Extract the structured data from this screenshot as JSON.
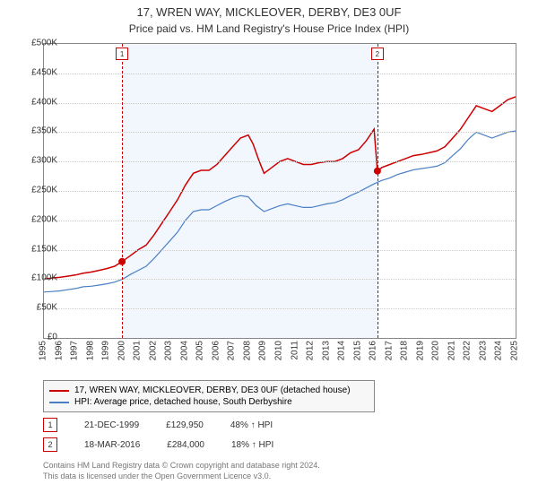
{
  "title": "17, WREN WAY, MICKLEOVER, DERBY, DE3 0UF",
  "subtitle": "Price paid vs. HM Land Registry's House Price Index (HPI)",
  "chart": {
    "type": "line",
    "background_color": "#ffffff",
    "plot_border_color": "#888888",
    "grid_color": "#cccccc",
    "shade_color": "#eaf2fb",
    "x": {
      "min": 1995,
      "max": 2025,
      "ticks": [
        1995,
        1996,
        1997,
        1998,
        1999,
        2000,
        2001,
        2002,
        2003,
        2004,
        2005,
        2006,
        2007,
        2008,
        2009,
        2010,
        2011,
        2012,
        2013,
        2014,
        2015,
        2016,
        2017,
        2018,
        2019,
        2020,
        2021,
        2022,
        2023,
        2024,
        2025
      ],
      "label_fontsize": 10,
      "label_rotation": -90
    },
    "y": {
      "min": 0,
      "max": 500000,
      "ticks": [
        0,
        50000,
        100000,
        150000,
        200000,
        250000,
        300000,
        350000,
        400000,
        450000,
        500000
      ],
      "tick_labels": [
        "£0",
        "£50K",
        "£100K",
        "£150K",
        "£200K",
        "£250K",
        "£300K",
        "£350K",
        "£400K",
        "£450K",
        "£500K"
      ],
      "label_fontsize": 10
    },
    "series": [
      {
        "name": "17, WREN WAY, MICKLEOVER, DERBY, DE3 0UF (detached house)",
        "color": "#cc0000",
        "width": 1.5,
        "data": [
          [
            1995.0,
            100000
          ],
          [
            1995.5,
            102000
          ],
          [
            1996.0,
            103000
          ],
          [
            1996.5,
            105000
          ],
          [
            1997.0,
            107000
          ],
          [
            1997.5,
            110000
          ],
          [
            1998.0,
            112000
          ],
          [
            1998.5,
            115000
          ],
          [
            1999.0,
            118000
          ],
          [
            1999.5,
            122000
          ],
          [
            1999.97,
            129950
          ],
          [
            2000.5,
            140000
          ],
          [
            2001.0,
            150000
          ],
          [
            2001.5,
            158000
          ],
          [
            2002.0,
            175000
          ],
          [
            2002.5,
            195000
          ],
          [
            2003.0,
            215000
          ],
          [
            2003.5,
            235000
          ],
          [
            2004.0,
            260000
          ],
          [
            2004.5,
            280000
          ],
          [
            2005.0,
            285000
          ],
          [
            2005.5,
            285000
          ],
          [
            2006.0,
            295000
          ],
          [
            2006.5,
            310000
          ],
          [
            2007.0,
            325000
          ],
          [
            2007.5,
            340000
          ],
          [
            2008.0,
            345000
          ],
          [
            2008.3,
            330000
          ],
          [
            2008.7,
            300000
          ],
          [
            2009.0,
            280000
          ],
          [
            2009.5,
            290000
          ],
          [
            2010.0,
            300000
          ],
          [
            2010.5,
            305000
          ],
          [
            2011.0,
            300000
          ],
          [
            2011.5,
            295000
          ],
          [
            2012.0,
            295000
          ],
          [
            2012.5,
            298000
          ],
          [
            2013.0,
            300000
          ],
          [
            2013.5,
            300000
          ],
          [
            2014.0,
            305000
          ],
          [
            2014.5,
            315000
          ],
          [
            2015.0,
            320000
          ],
          [
            2015.5,
            335000
          ],
          [
            2016.0,
            355000
          ],
          [
            2016.21,
            284000
          ],
          [
            2016.5,
            290000
          ],
          [
            2017.0,
            295000
          ],
          [
            2017.5,
            300000
          ],
          [
            2018.0,
            305000
          ],
          [
            2018.5,
            310000
          ],
          [
            2019.0,
            312000
          ],
          [
            2019.5,
            315000
          ],
          [
            2020.0,
            318000
          ],
          [
            2020.5,
            325000
          ],
          [
            2021.0,
            340000
          ],
          [
            2021.5,
            355000
          ],
          [
            2022.0,
            375000
          ],
          [
            2022.5,
            395000
          ],
          [
            2023.0,
            390000
          ],
          [
            2023.5,
            385000
          ],
          [
            2024.0,
            395000
          ],
          [
            2024.5,
            405000
          ],
          [
            2025.0,
            410000
          ]
        ]
      },
      {
        "name": "HPI: Average price, detached house, South Derbyshire",
        "color": "#4a7fc5",
        "width": 1.2,
        "data": [
          [
            1995.0,
            78000
          ],
          [
            1995.5,
            79000
          ],
          [
            1996.0,
            80000
          ],
          [
            1996.5,
            82000
          ],
          [
            1997.0,
            84000
          ],
          [
            1997.5,
            87000
          ],
          [
            1998.0,
            88000
          ],
          [
            1998.5,
            90000
          ],
          [
            1999.0,
            92000
          ],
          [
            1999.5,
            95000
          ],
          [
            2000.0,
            100000
          ],
          [
            2000.5,
            108000
          ],
          [
            2001.0,
            115000
          ],
          [
            2001.5,
            122000
          ],
          [
            2002.0,
            135000
          ],
          [
            2002.5,
            150000
          ],
          [
            2003.0,
            165000
          ],
          [
            2003.5,
            180000
          ],
          [
            2004.0,
            200000
          ],
          [
            2004.5,
            215000
          ],
          [
            2005.0,
            218000
          ],
          [
            2005.5,
            218000
          ],
          [
            2006.0,
            225000
          ],
          [
            2006.5,
            232000
          ],
          [
            2007.0,
            238000
          ],
          [
            2007.5,
            242000
          ],
          [
            2008.0,
            240000
          ],
          [
            2008.5,
            225000
          ],
          [
            2009.0,
            215000
          ],
          [
            2009.5,
            220000
          ],
          [
            2010.0,
            225000
          ],
          [
            2010.5,
            228000
          ],
          [
            2011.0,
            225000
          ],
          [
            2011.5,
            222000
          ],
          [
            2012.0,
            222000
          ],
          [
            2012.5,
            225000
          ],
          [
            2013.0,
            228000
          ],
          [
            2013.5,
            230000
          ],
          [
            2014.0,
            235000
          ],
          [
            2014.5,
            242000
          ],
          [
            2015.0,
            248000
          ],
          [
            2015.5,
            255000
          ],
          [
            2016.0,
            262000
          ],
          [
            2016.5,
            268000
          ],
          [
            2017.0,
            272000
          ],
          [
            2017.5,
            278000
          ],
          [
            2018.0,
            282000
          ],
          [
            2018.5,
            286000
          ],
          [
            2019.0,
            288000
          ],
          [
            2019.5,
            290000
          ],
          [
            2020.0,
            292000
          ],
          [
            2020.5,
            298000
          ],
          [
            2021.0,
            310000
          ],
          [
            2021.5,
            322000
          ],
          [
            2022.0,
            338000
          ],
          [
            2022.5,
            350000
          ],
          [
            2023.0,
            345000
          ],
          [
            2023.5,
            340000
          ],
          [
            2024.0,
            345000
          ],
          [
            2024.5,
            350000
          ],
          [
            2025.0,
            352000
          ]
        ]
      }
    ],
    "markers": [
      {
        "id": "1",
        "date_label": "21-DEC-1999",
        "x": 1999.97,
        "y": 129950,
        "price_label": "£129,950",
        "delta_label": "48% ↑ HPI",
        "border_color": "#cc0000"
      },
      {
        "id": "2",
        "date_label": "18-MAR-2016",
        "x": 2016.21,
        "y": 284000,
        "price_label": "£284,000",
        "delta_label": "18% ↑ HPI",
        "border_color": "#cc0000"
      }
    ],
    "shade_range": [
      1999.97,
      2016.21
    ],
    "marker_point_color": "#cc0000"
  },
  "footnote_line1": "Contains HM Land Registry data © Crown copyright and database right 2024.",
  "footnote_line2": "This data is licensed under the Open Government Licence v3.0."
}
